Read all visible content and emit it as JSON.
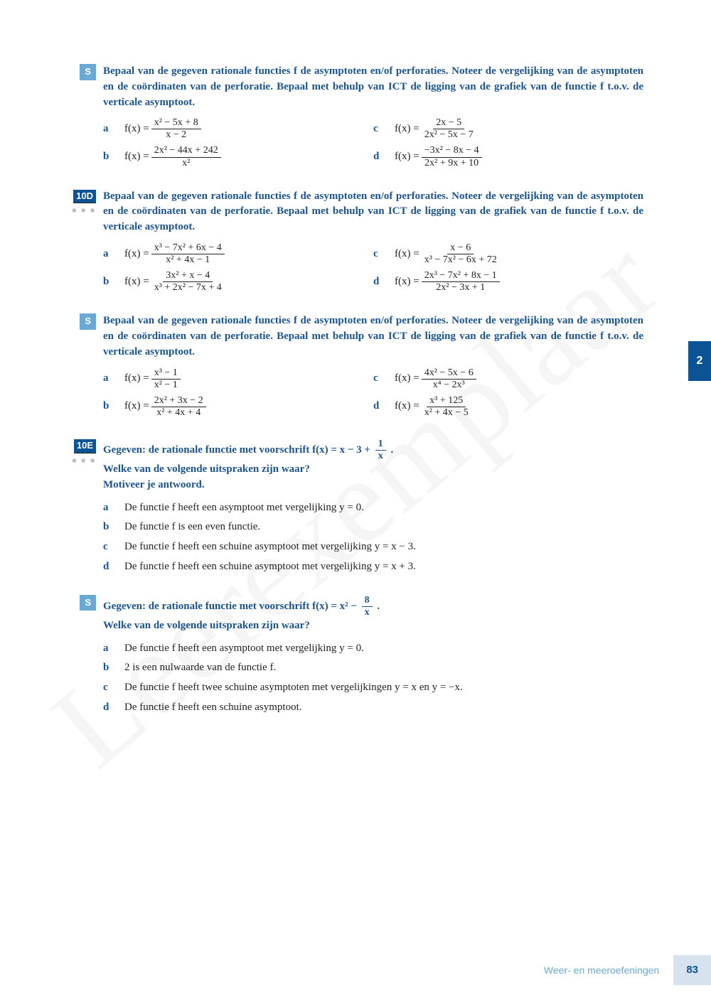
{
  "watermark": "Leerexemplaar",
  "side_tab": "2",
  "footer": {
    "title": "Weer- en meeroefeningen",
    "page": "83"
  },
  "intro_common": "Bepaal van de gegeven rationale functies f de asymptoten en/of perforaties. Noteer de vergelijking van de asymptoten en de coördinaten van de perforatie. Bepaal met behulp van ICT de ligging van de grafiek van de functie f t.o.v. de verticale asymptoot.",
  "ex1": {
    "badge": "S",
    "a": {
      "lhs": "f(x) = ",
      "num": "x² − 5x + 8",
      "den": "x − 2"
    },
    "b": {
      "lhs": "f(x) = ",
      "num": "2x² − 44x + 242",
      "den": "x²"
    },
    "c": {
      "lhs": "f(x) = ",
      "num": "2x − 5",
      "den": "2x² − 5x − 7"
    },
    "d": {
      "lhs": "f(x) = ",
      "num": "−3x² − 8x − 4",
      "den": "2x² + 9x + 10"
    }
  },
  "ex2": {
    "badge": "10D",
    "a": {
      "lhs": "f(x) = ",
      "num": "x³ − 7x² + 6x − 4",
      "den": "x² + 4x − 1"
    },
    "b": {
      "lhs": "f(x) = ",
      "num": "3x² + x − 4",
      "den": "x³ + 2x² − 7x + 4"
    },
    "c": {
      "lhs": "f(x) = ",
      "num": "x − 6",
      "den": "x³ − 7x² − 6x + 72"
    },
    "d": {
      "lhs": "f(x) = ",
      "num": "2x³ − 7x² + 8x − 1",
      "den": "2x² − 3x + 1"
    }
  },
  "ex3": {
    "badge": "S",
    "a": {
      "lhs": "f(x) = ",
      "num": "x³ − 1",
      "den": "x² − 1"
    },
    "b": {
      "lhs": "f(x) = ",
      "num": "2x² + 3x − 2",
      "den": "x² + 4x + 4"
    },
    "c": {
      "lhs": "f(x) = ",
      "num": "4x² − 5x − 6",
      "den": "x⁴ − 2x³"
    },
    "d": {
      "lhs": "f(x) = ",
      "num": "x³ + 125",
      "den": "x² + 4x − 5"
    }
  },
  "ex4": {
    "badge": "10E",
    "intro_pre": "Gegeven: de rationale functie met voorschrift f(x) = x − 3 + ",
    "frac_num": "1",
    "frac_den": "x",
    "intro_post": " .",
    "q1": "Welke van de volgende uitspraken zijn waar?",
    "q2": "Motiveer je antwoord.",
    "a": "De functie f heeft een asymptoot met vergelijking y = 0.",
    "b": "De functie f is een even functie.",
    "c": "De functie f heeft een schuine asymptoot met vergelijking y = x − 3.",
    "d": "De functie f heeft een schuine asymptoot met vergelijking y = x + 3."
  },
  "ex5": {
    "badge": "S",
    "intro_pre": "Gegeven: de rationale functie met voorschrift f(x) = x² − ",
    "frac_num": "8",
    "frac_den": "x",
    "intro_post": " .",
    "q1": "Welke van de volgende uitspraken zijn waar?",
    "a": "De functie f heeft een asymptoot met vergelijking y = 0.",
    "b": "2 is een nulwaarde van de functie f.",
    "c": "De functie f heeft twee schuine asymptoten met vergelijkingen y = x en y = −x.",
    "d": "De functie f heeft een schuine asymptoot."
  },
  "colors": {
    "accent_dark": "#0b5394",
    "accent_light": "#6aa9d4",
    "text": "#222222",
    "footer_bg": "#d6e3ef"
  }
}
